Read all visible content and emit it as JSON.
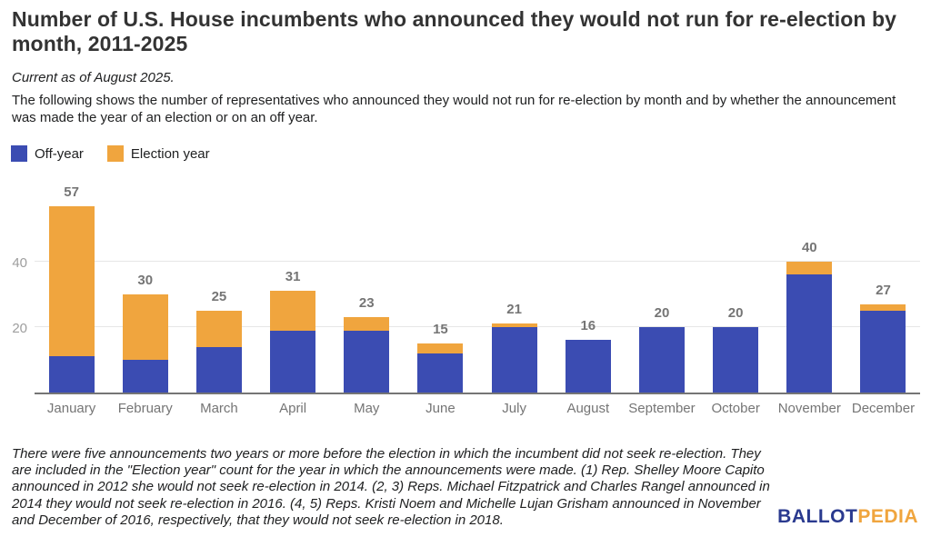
{
  "header": {
    "title": "Number of U.S. House incumbents who announced they would not run for re-election by month, 2011-2025",
    "subtitle": "Current as of August 2025.",
    "description": "The following shows the number of representatives who announced they would not run for re-election by month and by whether the announcement was made the year of an election or on an off year."
  },
  "legend": {
    "items": [
      {
        "label": "Off-year",
        "color": "#3b4cb2"
      },
      {
        "label": "Election year",
        "color": "#f0a53e"
      }
    ]
  },
  "chart_data": {
    "type": "bar",
    "stacked": true,
    "title": "Number of U.S. House incumbents who announced they would not run for re-election by month, 2011-2025",
    "categories": [
      "January",
      "February",
      "March",
      "April",
      "May",
      "June",
      "July",
      "August",
      "September",
      "October",
      "November",
      "December"
    ],
    "series": [
      {
        "name": "Off-year",
        "color": "#3b4cb2",
        "values": [
          11,
          10,
          14,
          19,
          19,
          12,
          20,
          16,
          20,
          20,
          36,
          25
        ]
      },
      {
        "name": "Election year",
        "color": "#f0a53e",
        "values": [
          46,
          20,
          11,
          12,
          4,
          3,
          1,
          0,
          0,
          0,
          4,
          2
        ]
      }
    ],
    "totals": [
      57,
      30,
      25,
      31,
      23,
      15,
      21,
      16,
      20,
      20,
      40,
      27
    ],
    "xlabel": "",
    "ylabel": "",
    "yticks": [
      20,
      40
    ],
    "ylim": [
      0,
      58
    ],
    "grid": true,
    "legend_position": "top-left",
    "axis_color": "#757575",
    "gridline_color": "#e6e6e6",
    "tick_label_color": "#9e9e9e",
    "value_label_color": "#757575"
  },
  "footnote": "There were five announcements two years or more before the election in which the incumbent did not seek re-election. They are included in the \"Election year\" count for the year in which the announcements were made. (1) Rep. Shelley Moore Capito announced in 2012 she would not seek re-election in 2014. (2, 3) Reps. Michael Fitzpatrick and Charles Rangel announced in 2014 they would not seek re-election in 2016. (4, 5) Reps. Kristi Noem and Michelle Lujan Grisham announced in November and December of 2016, respectively, that they would not seek re-election in 2018.",
  "branding": {
    "logo_part1": "BALLOT",
    "logo_part2": "PEDIA",
    "logo_color1": "#2a3a8f",
    "logo_color2": "#f0a53e"
  }
}
